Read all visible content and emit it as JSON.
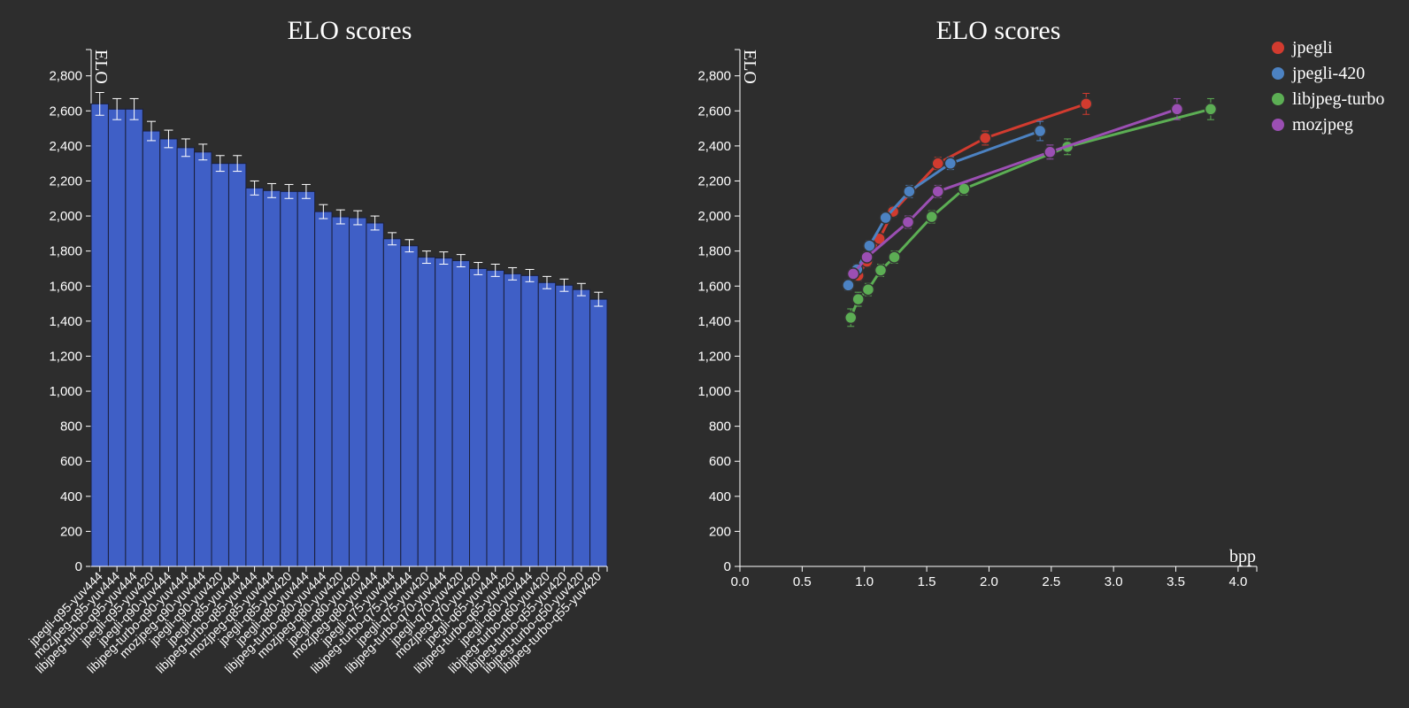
{
  "chart_data": [
    {
      "type": "bar",
      "title": "ELO scores",
      "ylabel": "ELO",
      "xlabel": "",
      "ylim": [
        0,
        2950
      ],
      "yticks": [
        "0",
        "200",
        "400",
        "600",
        "800",
        "1,000",
        "1,200",
        "1,400",
        "1,600",
        "1,800",
        "2,000",
        "2,200",
        "2,400",
        "2,600",
        "2,800"
      ],
      "bar_color": "#3f5fc6",
      "categories": [
        "jpegli-q95-yuv444",
        "mozjpeg-q95-yuv444",
        "libjpeg-turbo-q95-yuv444",
        "jpegli-q95-yuv420",
        "jpegli-q90-yuv444",
        "libjpeg-turbo-q90-yuv444",
        "mozjpeg-q90-yuv444",
        "jpegli-q90-yuv420",
        "jpegli-q85-yuv444",
        "libjpeg-turbo-q85-yuv444",
        "mozjpeg-q85-yuv444",
        "jpegli-q85-yuv420",
        "jpegli-q80-yuv444",
        "libjpeg-turbo-q80-yuv444",
        "mozjpeg-q80-yuv420",
        "jpegli-q80-yuv420",
        "mozjpeg-q80-yuv444",
        "jpegli-q75-yuv444",
        "libjpeg-turbo-q75-yuv444",
        "jpegli-q75-yuv420",
        "libjpeg-turbo-q70-yuv444",
        "jpegli-q70-yuv420",
        "mozjpeg-q70-yuv420",
        "jpegli-q65-yuv444",
        "libjpeg-turbo-q65-yuv420",
        "jpegli-q60-yuv444",
        "libjpeg-turbo-q60-yuv420",
        "libjpeg-turbo-q55-yuv420",
        "libjpeg-turbo-q50-yuv420",
        "libjpeg-turbo-q55-yuv420"
      ],
      "values": [
        2640,
        2610,
        2610,
        2485,
        2440,
        2390,
        2365,
        2300,
        2300,
        2160,
        2145,
        2140,
        2140,
        2025,
        1995,
        1990,
        1960,
        1870,
        1830,
        1765,
        1760,
        1745,
        1700,
        1690,
        1670,
        1660,
        1620,
        1605,
        1580,
        1525
      ],
      "errors": [
        65,
        60,
        60,
        55,
        50,
        50,
        45,
        45,
        45,
        40,
        40,
        40,
        40,
        40,
        40,
        40,
        40,
        35,
        35,
        35,
        35,
        35,
        35,
        35,
        35,
        35,
        35,
        35,
        35,
        40
      ]
    },
    {
      "type": "line",
      "title": "ELO scores",
      "ylabel": "ELO",
      "xlabel": "bpp",
      "xlim": [
        0,
        4.15
      ],
      "ylim": [
        0,
        2950
      ],
      "xticks": [
        "0.0",
        "0.5",
        "1.0",
        "1.5",
        "2.0",
        "2.5",
        "3.0",
        "3.5",
        "4.0"
      ],
      "yticks": [
        "0",
        "200",
        "400",
        "600",
        "800",
        "1,000",
        "1,200",
        "1,400",
        "1,600",
        "1,800",
        "2,000",
        "2,200",
        "2,400",
        "2,600",
        "2,800"
      ],
      "legend_position": "top-right",
      "series": [
        {
          "name": "jpegli",
          "color": "#d23b2f",
          "x": [
            0.95,
            1.02,
            1.12,
            1.23,
            1.59,
            1.97,
            2.78
          ],
          "y": [
            1660,
            1740,
            1870,
            2025,
            2300,
            2445,
            2640
          ],
          "err": [
            30,
            30,
            30,
            30,
            35,
            40,
            60
          ]
        },
        {
          "name": "jpegli-420",
          "color": "#4c82c2",
          "x": [
            0.87,
            0.94,
            1.04,
            1.17,
            1.36,
            1.69,
            2.41
          ],
          "y": [
            1605,
            1695,
            1830,
            1990,
            2140,
            2300,
            2485
          ],
          "err": [
            30,
            30,
            30,
            30,
            35,
            35,
            55
          ]
        },
        {
          "name": "libjpeg-turbo",
          "color": "#5cae54",
          "x": [
            0.89,
            0.95,
            1.03,
            1.13,
            1.24,
            1.54,
            1.8,
            2.63,
            3.78
          ],
          "y": [
            1420,
            1525,
            1580,
            1690,
            1765,
            1995,
            2155,
            2395,
            2610
          ],
          "err": [
            50,
            40,
            35,
            35,
            35,
            35,
            35,
            45,
            60
          ]
        },
        {
          "name": "mozjpeg",
          "color": "#9b4fb3",
          "x": [
            0.91,
            1.02,
            1.35,
            1.59,
            2.49,
            3.51
          ],
          "y": [
            1670,
            1765,
            1965,
            2140,
            2365,
            2610
          ],
          "err": [
            30,
            30,
            35,
            35,
            40,
            60
          ]
        }
      ]
    }
  ]
}
